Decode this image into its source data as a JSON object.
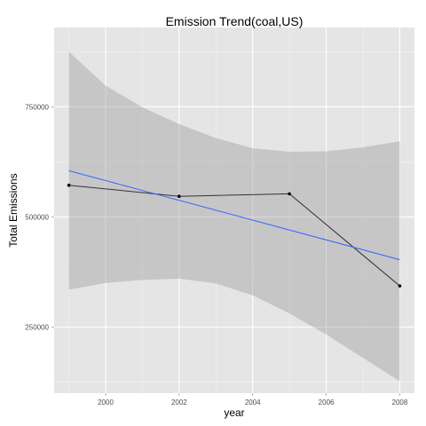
{
  "chart_data": {
    "type": "line",
    "title": "Emission Trend(coal,US)",
    "xlabel": "year",
    "ylabel": "Total Emissions",
    "xlim": [
      1998.6,
      2008.4
    ],
    "ylim": [
      100000,
      930000
    ],
    "x_ticks": [
      {
        "value": 2000,
        "label": "2000"
      },
      {
        "value": 2002,
        "label": "2002"
      },
      {
        "value": 2004,
        "label": "2004"
      },
      {
        "value": 2006,
        "label": "2006"
      },
      {
        "value": 2008,
        "label": "2008"
      }
    ],
    "y_ticks": [
      {
        "value": 250000,
        "label": "250000"
      },
      {
        "value": 500000,
        "label": "500000"
      },
      {
        "value": 750000,
        "label": "750000"
      }
    ],
    "grid": true,
    "series": [
      {
        "kind": "line-with-points",
        "color": "#333333",
        "x": [
          1999,
          2002,
          2005,
          2008
        ],
        "y": [
          572000,
          546800,
          552500,
          343400
        ]
      },
      {
        "kind": "linear-fit",
        "color": "#3366ff",
        "x": [
          1999,
          2008
        ],
        "y": [
          605000,
          403000
        ]
      }
    ],
    "confidence_band": {
      "color": "#999999",
      "x": [
        1999,
        2000,
        2001,
        2002,
        2003,
        2004,
        2005,
        2006,
        2007,
        2008
      ],
      "upper": [
        875000,
        798000,
        749000,
        711000,
        679000,
        656000,
        648000,
        649000,
        658000,
        672000
      ],
      "lower": [
        335000,
        350000,
        357000,
        360000,
        349000,
        322000,
        281000,
        233000,
        180000,
        127000
      ]
    }
  }
}
